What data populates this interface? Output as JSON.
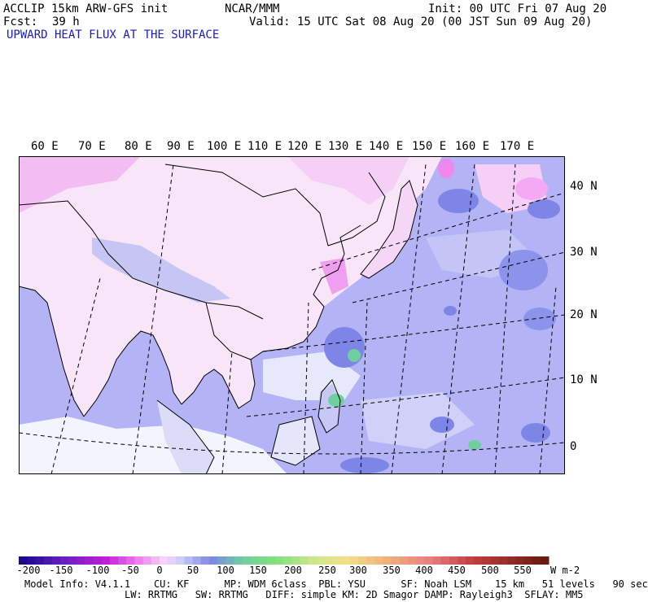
{
  "header": {
    "model": "ACCLIP 15km ARW-GFS init",
    "center": "NCAR/MMM",
    "init": "Init: 00 UTC Fri 07 Aug 20",
    "fcst_label": "Fcst:",
    "fcst_value": "39 h",
    "valid": "Valid: 15 UTC Sat 08 Aug 20 (00 JST Sun 09 Aug 20)",
    "field_title": "UPWARD HEAT FLUX AT THE SURFACE"
  },
  "map": {
    "lon_labels": [
      "60 E",
      "70 E",
      "80 E",
      "90 E",
      "100 E",
      "110 E",
      "120 E",
      "130 E",
      "140 E",
      "150 E",
      "160 E",
      "170 E"
    ],
    "lat_labels": [
      "40 N",
      "30 N",
      "20 N",
      "10 N",
      "0"
    ],
    "colors": {
      "ocean_flux": "#b3b3f5",
      "land_neg": "#f7d2f7",
      "high_flux": "#7d86e6",
      "frame": "#000000"
    }
  },
  "colorbar": {
    "labels": [
      "-200",
      "-150",
      "-100",
      "-50",
      "0",
      "50",
      "100",
      "150",
      "200",
      "250",
      "300",
      "350",
      "400",
      "450",
      "500",
      "550"
    ],
    "unit": "W m-2"
  },
  "footer": {
    "line1": "Model Info: V4.1.1    CU: KF      MP: WDM 6class  PBL: YSU      SF: Noah LSM    15 km   51 levels   90 sec",
    "line2": "LW: RRTMG   SW: RRTMG   DIFF: simple KM: 2D Smagor DAMP: Rayleigh3  SFLAY: MM5"
  }
}
